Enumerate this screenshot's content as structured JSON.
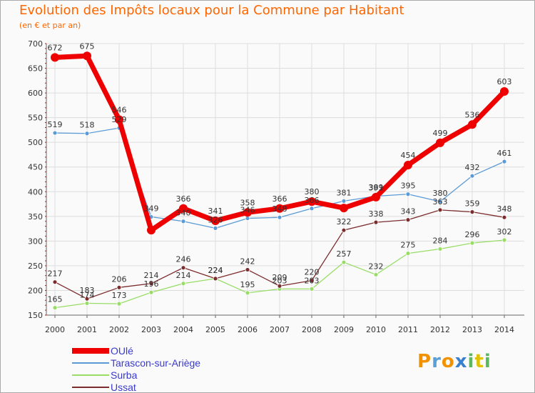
{
  "header": {
    "title": "Evolution des Impôts locaux pour la Commune par Habitant",
    "subtitle": "(en € et par an)"
  },
  "brand": {
    "letters": [
      "P",
      "r",
      "o",
      "x",
      "i",
      "t",
      "i"
    ],
    "colors": [
      "#f39200",
      "#5aa0d8",
      "#f39200",
      "#3a7fd0",
      "#5cb85c",
      "#e0c200",
      "#5cb85c"
    ]
  },
  "chart_data": {
    "type": "line",
    "title": "Evolution des Impôts locaux pour la Commune par Habitant",
    "subtitle": "(en € et par an)",
    "x": [
      2000,
      2001,
      2002,
      2003,
      2004,
      2005,
      2006,
      2007,
      2008,
      2009,
      2010,
      2011,
      2012,
      2013,
      2014
    ],
    "ylim": [
      150,
      700
    ],
    "yticks": [
      150,
      200,
      250,
      300,
      350,
      400,
      450,
      500,
      550,
      600,
      650,
      700
    ],
    "grid": true,
    "legend_position": "bottom-left",
    "series": [
      {
        "name": "OUlé",
        "color": "#ee0000",
        "values": [
          672,
          675,
          546,
          322,
          366,
          341,
          358,
          366,
          380,
          367,
          389,
          454,
          499,
          536,
          603
        ],
        "labels": [
          "672",
          "675",
          "546",
          "",
          "366",
          "341",
          "358",
          "366",
          "380",
          "",
          "389",
          "454",
          "499",
          "536",
          "603"
        ]
      },
      {
        "name": "Tarascon-sur-Ariège",
        "color": "#5b9bd5",
        "values": [
          519,
          518,
          529,
          349,
          340,
          326,
          346,
          348,
          366,
          381,
          391,
          395,
          380,
          432,
          461
        ],
        "labels": [
          "519",
          "518",
          "529",
          "349",
          "340",
          "326",
          "346",
          "348",
          "366",
          "381",
          "391",
          "395",
          "380",
          "432",
          "461"
        ]
      },
      {
        "name": "Surba",
        "color": "#99dd66",
        "values": [
          165,
          174,
          173,
          196,
          214,
          224,
          195,
          203,
          203,
          257,
          232,
          275,
          284,
          296,
          302
        ],
        "labels": [
          "165",
          "174",
          "173",
          "196",
          "214",
          "224",
          "195",
          "203",
          "203",
          "257",
          "232",
          "275",
          "284",
          "296",
          "302"
        ]
      },
      {
        "name": "Ussat",
        "color": "#7b2d2d",
        "values": [
          217,
          183,
          206,
          214,
          246,
          224,
          242,
          209,
          220,
          322,
          338,
          343,
          363,
          359,
          348
        ],
        "labels": [
          "217",
          "183",
          "206",
          "214",
          "246",
          "224",
          "242",
          "209",
          "220",
          "322",
          "338",
          "343",
          "363",
          "359",
          "348"
        ]
      }
    ]
  }
}
